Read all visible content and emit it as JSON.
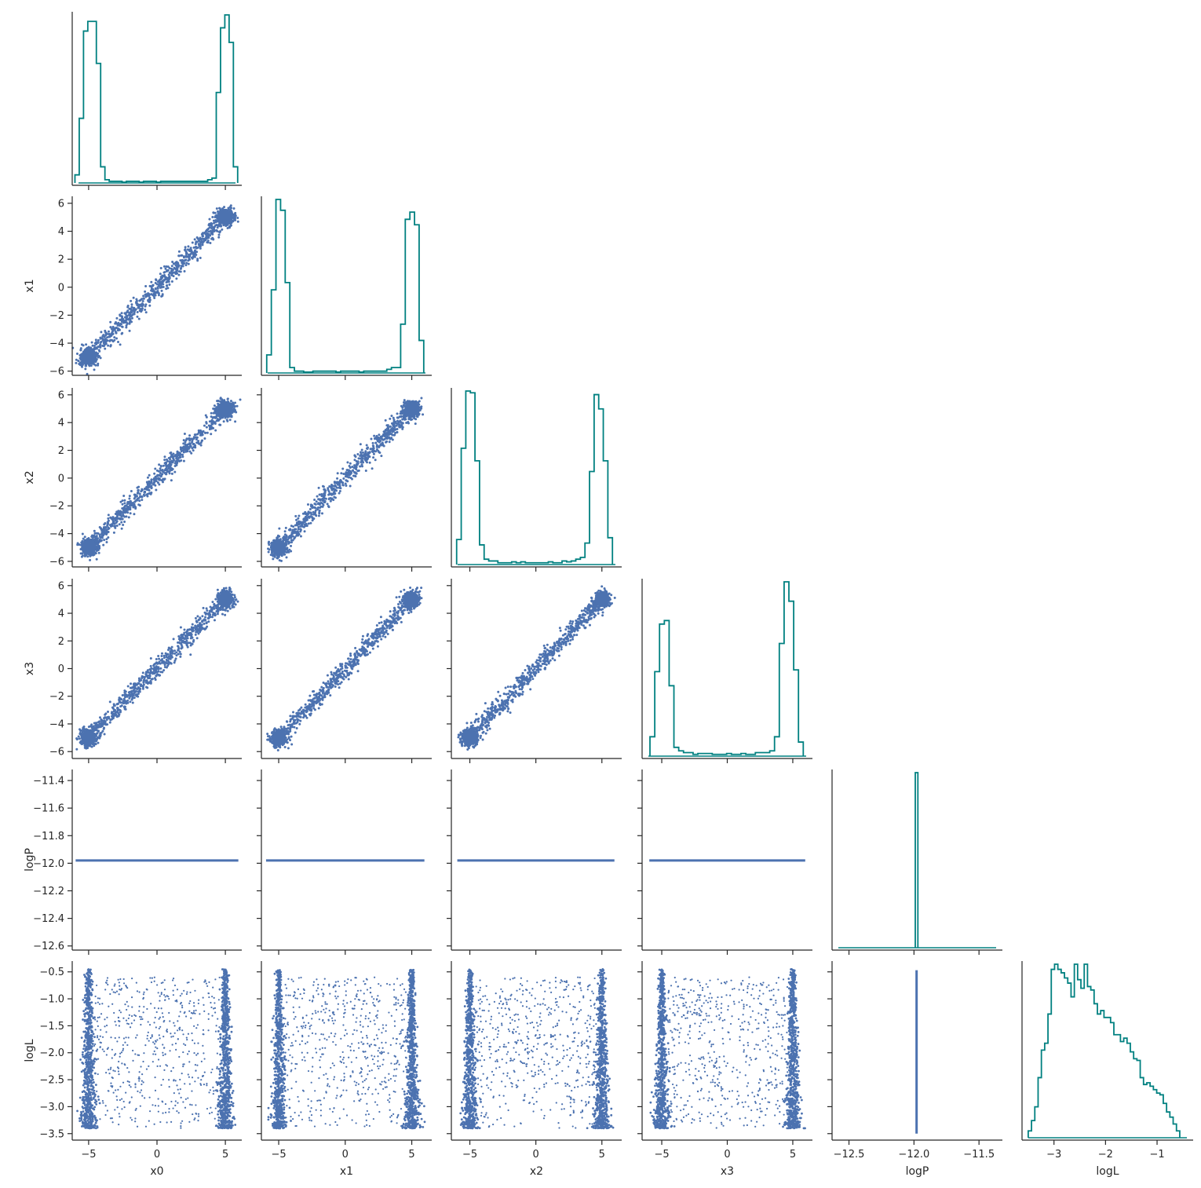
{
  "colors": {
    "hist": "#008080",
    "scatter": "#4c72b0",
    "axis": "#262626"
  },
  "chart_data": {
    "type": "corner-pairplot",
    "title": "",
    "variables": [
      "x0",
      "x1",
      "x2",
      "x3",
      "logP",
      "logL"
    ],
    "axis_labels": {
      "x": [
        "x0",
        "x1",
        "x2",
        "x3",
        "logP",
        "logL"
      ],
      "y": [
        "",
        "x1",
        "x2",
        "x3",
        "logP",
        "logL"
      ]
    },
    "ranges": {
      "x0": [
        -6.2,
        6.2
      ],
      "x1": [
        -6.3,
        6.5
      ],
      "x2": [
        -6.4,
        6.5
      ],
      "x3": [
        -6.5,
        6.5
      ],
      "logP": [
        -12.63,
        -11.32
      ],
      "logL": [
        -3.62,
        -0.3
      ]
    },
    "ticks": {
      "x0": [
        -5,
        0,
        5
      ],
      "x1": [
        -6,
        -4,
        -2,
        0,
        2,
        4,
        6
      ],
      "x2": [
        -6,
        -4,
        -2,
        0,
        2,
        4,
        6
      ],
      "x3": [
        -6,
        -4,
        -2,
        0,
        2,
        4,
        6
      ],
      "logP": [
        -12.6,
        -12.4,
        -12.2,
        -12.0,
        -11.8,
        -11.6,
        -11.4
      ],
      "logL": [
        -3.5,
        -3.0,
        -2.5,
        -2.0,
        -1.5,
        -1.0,
        -0.5
      ]
    },
    "xticks": {
      "x0": [
        -5,
        0,
        5
      ],
      "x1": [
        -5,
        0,
        5
      ],
      "x2": [
        -5,
        0,
        5
      ],
      "x3": [
        -5,
        0,
        5
      ],
      "logP": [
        -12.5,
        -12.0,
        -11.5
      ],
      "logL": [
        -3,
        -2,
        -1
      ]
    },
    "xtick_labels": {
      "x0": [
        "−5",
        "0",
        "5"
      ],
      "x1": [
        "−5",
        "0",
        "5"
      ],
      "x2": [
        "−5",
        "0",
        "5"
      ],
      "x3": [
        "−5",
        "0",
        "5"
      ],
      "logP": [
        "−12.5",
        "−12.0",
        "−11.5"
      ],
      "logL": [
        "−3",
        "−2",
        "−1"
      ]
    },
    "ytick_labels": {
      "x1": [
        "−6",
        "−4",
        "−2",
        "0",
        "2",
        "4",
        "6"
      ],
      "x2": [
        "−6",
        "−4",
        "−2",
        "0",
        "2",
        "4",
        "6"
      ],
      "x3": [
        "−6",
        "−4",
        "−2",
        "0",
        "2",
        "4",
        "6"
      ],
      "logP": [
        "−12.6",
        "−12.4",
        "−12.2",
        "−12.0",
        "−11.8",
        "−11.6",
        "−11.4"
      ],
      "logL": [
        "−3.5",
        "−3.0",
        "−2.5",
        "−2.0",
        "−1.5",
        "−1.0",
        "−0.5"
      ]
    },
    "histograms": {
      "x0": {
        "edges": [
          -6.0,
          5.9
        ],
        "counts": [
          5,
          40,
          94,
          100,
          100,
          74,
          10,
          2,
          1,
          1,
          1,
          0.5,
          1,
          1,
          1,
          0.5,
          1,
          1,
          1,
          0.5,
          1,
          1,
          1,
          1,
          1,
          1,
          1,
          1,
          1,
          1,
          1,
          2,
          3,
          56,
          96,
          104,
          87,
          10
        ]
      },
      "x1": {
        "edges": [
          -5.9,
          5.9
        ],
        "counts": [
          10,
          46,
          96,
          90,
          50,
          3,
          1,
          1,
          0.5,
          0.5,
          1,
          1,
          1,
          1,
          1,
          0.5,
          1,
          1,
          1,
          1,
          0.5,
          1,
          1,
          1,
          1,
          1,
          2,
          3,
          3,
          27,
          85,
          89,
          82,
          18
        ]
      },
      "x2": {
        "edges": [
          -6.0,
          5.8
        ],
        "counts": [
          14,
          65,
          97,
          96,
          58,
          11,
          3,
          2,
          2,
          1,
          1,
          1,
          1.5,
          1,
          1.5,
          1,
          1,
          1,
          1,
          1,
          1.5,
          1,
          1,
          2,
          1.5,
          2,
          3,
          4,
          12,
          52,
          95,
          87,
          58,
          15
        ]
      },
      "x3": {
        "edges": [
          -5.9,
          5.8
        ],
        "counts": [
          11,
          48,
          75,
          77,
          40,
          5,
          3,
          2,
          2,
          1,
          1.5,
          1.5,
          1.5,
          1,
          1,
          1,
          1.5,
          1,
          1,
          1.5,
          1,
          1,
          2,
          2,
          2,
          3,
          11,
          64,
          99,
          88,
          49,
          8
        ]
      },
      "logP": {
        "edges": [
          -11.99,
          -11.97
        ],
        "counts": [
          100
        ]
      },
      "logL": {
        "edges": [
          -3.5,
          -0.56
        ],
        "counts": [
          4,
          10,
          18,
          35,
          51,
          55,
          72,
          98,
          101,
          98,
          96,
          93,
          90,
          82,
          101,
          92,
          87,
          101,
          88,
          86,
          78,
          72,
          74,
          70,
          70,
          67,
          60,
          60,
          56,
          58,
          55,
          50,
          46,
          45,
          35,
          31,
          32,
          30,
          28,
          26,
          25,
          20,
          15,
          12,
          8,
          4
        ]
      }
    },
    "scatter_description": {
      "xi_vs_xj": "bimodal clusters near -5 and 5 joined by a linear bridge",
      "any_vs_logP": "logP is constant at about -11.98",
      "any_vs_logL": "dense bands near -5 and 5 with sparse points between; logL spans about -3.5 to -0.5"
    }
  }
}
